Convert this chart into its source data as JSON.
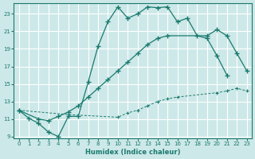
{
  "xlabel": "Humidex (Indice chaleur)",
  "bg_color": "#cde8e8",
  "grid_color": "#ffffff",
  "line_color": "#1a7a6e",
  "xlim": [
    -0.5,
    23.5
  ],
  "ylim": [
    8.8,
    24.2
  ],
  "xticks": [
    0,
    1,
    2,
    3,
    4,
    5,
    6,
    7,
    8,
    9,
    10,
    11,
    12,
    13,
    14,
    15,
    16,
    17,
    18,
    19,
    20,
    21,
    22,
    23
  ],
  "yticks": [
    9,
    11,
    13,
    15,
    17,
    19,
    21,
    23
  ],
  "line1_x": [
    0,
    1,
    2,
    3,
    4,
    5,
    6,
    7,
    8,
    9,
    10,
    11,
    12,
    13,
    14,
    15,
    16,
    17,
    18,
    19,
    20,
    21
  ],
  "line1_y": [
    12.0,
    11.1,
    10.5,
    9.5,
    9.0,
    11.3,
    11.3,
    15.2,
    19.3,
    22.1,
    23.8,
    22.5,
    23.0,
    23.8,
    23.7,
    23.8,
    22.1,
    22.5,
    20.5,
    20.2,
    18.2,
    16.0
  ],
  "line2_x": [
    0,
    2,
    3,
    4,
    5,
    6,
    7,
    8,
    9,
    10,
    11,
    12,
    13,
    14,
    15,
    19,
    20,
    21,
    22,
    23
  ],
  "line2_y": [
    12.0,
    11.0,
    10.8,
    11.3,
    11.8,
    12.5,
    13.5,
    14.5,
    15.5,
    16.5,
    17.5,
    18.5,
    19.5,
    20.2,
    20.5,
    20.5,
    21.2,
    20.5,
    18.5,
    16.5
  ],
  "line3_x": [
    0,
    5,
    10,
    11,
    12,
    13,
    14,
    15,
    16,
    20,
    21,
    22,
    23
  ],
  "line3_y": [
    12.0,
    11.5,
    11.2,
    11.7,
    12.0,
    12.5,
    13.0,
    13.3,
    13.5,
    14.0,
    14.2,
    14.5,
    14.2
  ]
}
